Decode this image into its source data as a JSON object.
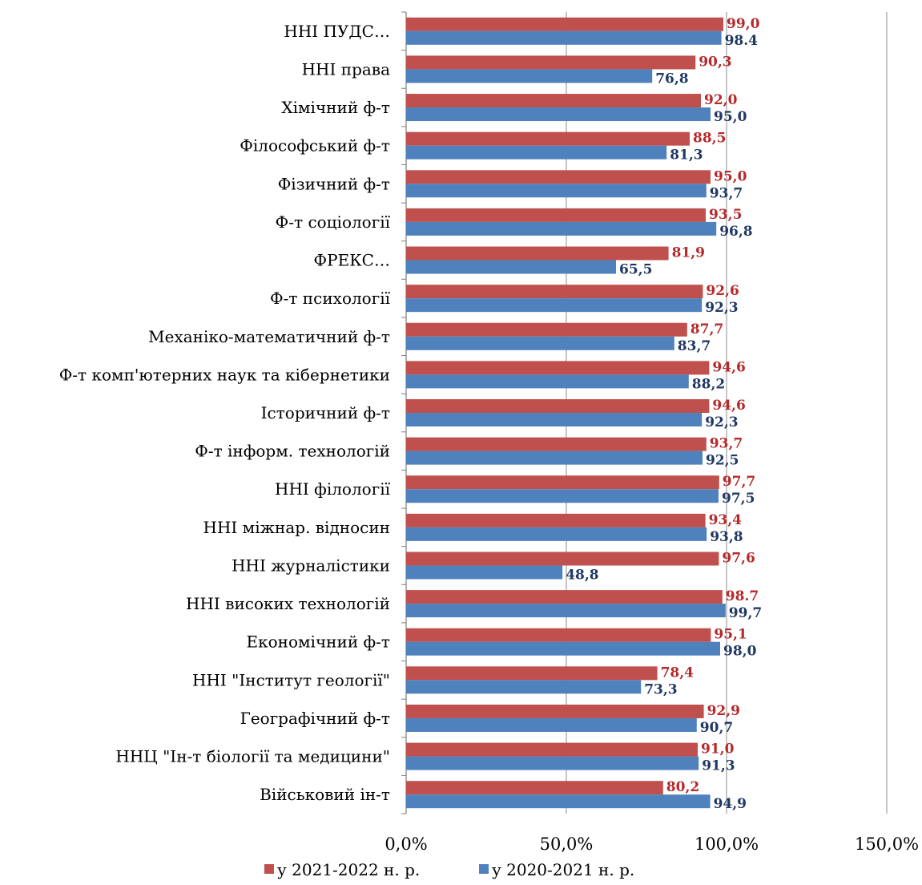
{
  "chart_data": {
    "type": "bar",
    "orientation": "horizontal",
    "title": "",
    "xlabel": "",
    "ylabel": "",
    "xlim": [
      0,
      150
    ],
    "x_ticks": [
      "0,0%",
      "50,0%",
      "100,0%",
      "150,0%"
    ],
    "grid": "vertical",
    "legend_position": "bottom",
    "categories": [
      "ННІ ПУДС…",
      "ННІ права",
      "Хімічний ф-т",
      "Філософський ф-т",
      "Фізичний ф-т",
      "Ф-т соціології",
      "ФРЕКС…",
      "Ф-т психології",
      "Механіко-математичний ф-т",
      "Ф-т комп'ютерних наук та кібернетики",
      "Історичний ф-т",
      "Ф-т інформ. технологій",
      "ННІ філології",
      "ННІ міжнар. відносин",
      "ННІ журналістики",
      "ННІ високих технологій",
      "Економічний ф-т",
      "ННІ \"Інститут геології\"",
      "Географічний ф-т",
      "ННЦ \"Ін-т біології та медицини\"",
      "Військовий ін-т"
    ],
    "series": [
      {
        "name": "у 2021-2022 н. р.",
        "color": "#c0504d",
        "label_color": "#b7282a",
        "values": [
          99.0,
          90.3,
          92.0,
          88.5,
          95.0,
          93.5,
          81.9,
          92.6,
          87.7,
          94.6,
          94.6,
          93.7,
          97.7,
          93.4,
          97.6,
          98.7,
          95.1,
          78.4,
          92.9,
          91.0,
          80.2
        ],
        "labels": [
          "99,0",
          "90,3",
          "92,0",
          "88,5",
          "95,0",
          "93,5",
          "81,9",
          "92,6",
          "87,7",
          "94,6",
          "94,6",
          "93,7",
          "97,7",
          "93,4",
          "97,6",
          "98.7",
          "95,1",
          "78,4",
          "92,9",
          "91,0",
          "80,2"
        ]
      },
      {
        "name": "у 2020-2021 н. р.",
        "color": "#4f81bd",
        "label_color": "#1f3864",
        "values": [
          98.4,
          76.8,
          95.0,
          81.3,
          93.7,
          96.8,
          65.5,
          92.3,
          83.7,
          88.2,
          92.3,
          92.5,
          97.5,
          93.8,
          48.8,
          99.7,
          98.0,
          73.3,
          90.7,
          91.3,
          94.9
        ],
        "labels": [
          "98.4",
          "76,8",
          "95,0",
          "81,3",
          "93,7",
          "96,8",
          "65,5",
          "92,3",
          "83,7",
          "88,2",
          "92,3",
          "92,5",
          "97,5",
          "93,8",
          "48,8",
          "99,7",
          "98,0",
          "73,3",
          "90,7",
          "91,3",
          "94,9"
        ]
      }
    ]
  }
}
